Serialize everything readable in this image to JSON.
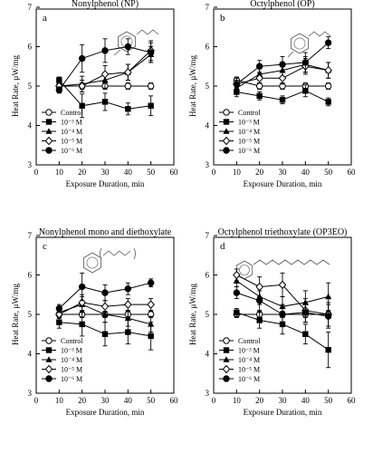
{
  "chart_data": [
    {
      "type": "line",
      "panel_letter": "a",
      "title": "Nonylphenol (NP)",
      "xlabel": "Exposure Duration, min",
      "ylabel": "Heat Rate, µW/mg",
      "xlim": [
        0,
        60
      ],
      "ylim": [
        3,
        7
      ],
      "xticks": [
        0,
        10,
        20,
        30,
        40,
        50,
        60
      ],
      "yticks": [
        3,
        4,
        5,
        6,
        7
      ],
      "legend": "lower-left",
      "series": [
        {
          "name": "Control",
          "marker": "circle-open",
          "x": [
            10,
            20,
            30,
            40,
            50
          ],
          "y": [
            5.0,
            5.0,
            5.0,
            5.0,
            5.0
          ],
          "err": [
            0.08,
            0.08,
            0.08,
            0.08,
            0.08
          ]
        },
        {
          "name": "10⁻³ M",
          "marker": "square",
          "x": [
            10,
            20,
            30,
            40,
            50
          ],
          "y": [
            5.15,
            4.5,
            4.6,
            4.42,
            4.5
          ],
          "err": [
            0.08,
            0.3,
            0.22,
            0.15,
            0.25
          ]
        },
        {
          "name": "10⁻⁴ M",
          "marker": "triangle",
          "x": [
            10,
            20,
            30,
            40,
            50
          ],
          "y": [
            5.0,
            5.05,
            5.15,
            5.35,
            5.8
          ],
          "err": [
            0.08,
            0.2,
            0.2,
            0.2,
            0.2
          ]
        },
        {
          "name": "10⁻⁵ M",
          "marker": "diamond-open",
          "x": [
            10,
            20,
            30,
            40,
            50
          ],
          "y": [
            5.0,
            5.0,
            5.3,
            5.35,
            5.9
          ],
          "err": [
            0.08,
            0.15,
            0.22,
            0.2,
            0.25
          ]
        },
        {
          "name": "10⁻⁶ M",
          "marker": "circle",
          "x": [
            10,
            20,
            30,
            40,
            50
          ],
          "y": [
            4.9,
            5.7,
            5.9,
            6.0,
            5.85
          ],
          "err": [
            0.08,
            0.35,
            0.3,
            0.2,
            0.25
          ]
        }
      ]
    },
    {
      "type": "line",
      "panel_letter": "b",
      "title": "Octylphenol (OP)",
      "xlabel": "Exposure Duration, min",
      "ylabel": "Heat Rate, µW/mg",
      "xlim": [
        0,
        60
      ],
      "ylim": [
        3,
        7
      ],
      "xticks": [
        0,
        10,
        20,
        30,
        40,
        50,
        60
      ],
      "yticks": [
        3,
        4,
        5,
        6,
        7
      ],
      "legend": "lower-left",
      "series": [
        {
          "name": "Control",
          "marker": "circle-open",
          "x": [
            10,
            20,
            30,
            40,
            50
          ],
          "y": [
            5.15,
            5.0,
            5.0,
            5.0,
            5.0
          ],
          "err": [
            0.08,
            0.08,
            0.08,
            0.08,
            0.08
          ]
        },
        {
          "name": "10⁻³ M",
          "marker": "square",
          "x": [
            10,
            20,
            30,
            40,
            50
          ],
          "y": [
            4.85,
            4.75,
            4.65,
            4.88,
            4.6
          ],
          "err": [
            0.12,
            0.1,
            0.1,
            0.15,
            0.1
          ]
        },
        {
          "name": "10⁻⁴ M",
          "marker": "triangle",
          "x": [
            10,
            20,
            30,
            40,
            50
          ],
          "y": [
            4.95,
            5.3,
            5.4,
            5.55,
            5.4
          ],
          "err": [
            0.12,
            0.15,
            0.18,
            0.2,
            0.2
          ]
        },
        {
          "name": "10⁻⁵ M",
          "marker": "diamond-open",
          "x": [
            10,
            20,
            30,
            40,
            50
          ],
          "y": [
            5.05,
            5.2,
            5.2,
            5.5,
            5.4
          ],
          "err": [
            0.1,
            0.12,
            0.15,
            0.2,
            0.2
          ]
        },
        {
          "name": "10⁻⁶ M",
          "marker": "circle",
          "x": [
            10,
            20,
            30,
            40,
            50
          ],
          "y": [
            5.05,
            5.5,
            5.55,
            5.6,
            6.1
          ],
          "err": [
            0.15,
            0.15,
            0.2,
            0.25,
            0.15
          ]
        }
      ]
    },
    {
      "type": "line",
      "panel_letter": "c",
      "title": "Nonylphenol mono and diethoxylate",
      "xlabel": "Exposure Duration, min",
      "ylabel": "Heat Rate, µW/mg",
      "xlim": [
        0,
        60
      ],
      "ylim": [
        3,
        7
      ],
      "xticks": [
        0,
        10,
        20,
        30,
        40,
        50,
        60
      ],
      "yticks": [
        3,
        4,
        5,
        6,
        7
      ],
      "legend": "lower-left",
      "series": [
        {
          "name": "Control",
          "marker": "circle-open",
          "x": [
            10,
            20,
            30,
            40,
            50
          ],
          "y": [
            5.0,
            5.0,
            5.0,
            5.0,
            5.0
          ],
          "err": [
            0.08,
            0.08,
            0.08,
            0.08,
            0.08
          ]
        },
        {
          "name": "10⁻³ M",
          "marker": "square",
          "x": [
            10,
            20,
            30,
            40,
            50
          ],
          "y": [
            4.8,
            4.75,
            4.5,
            4.55,
            4.45
          ],
          "err": [
            0.15,
            0.3,
            0.3,
            0.3,
            0.35
          ]
        },
        {
          "name": "10⁻⁴ M",
          "marker": "triangle",
          "x": [
            10,
            20,
            30,
            40,
            50
          ],
          "y": [
            5.05,
            5.25,
            5.0,
            4.9,
            4.75
          ],
          "err": [
            0.1,
            0.2,
            0.2,
            0.2,
            0.2
          ]
        },
        {
          "name": "10⁻⁵ M",
          "marker": "diamond-open",
          "x": [
            10,
            20,
            30,
            40,
            50
          ],
          "y": [
            5.0,
            5.3,
            5.2,
            5.25,
            5.25
          ],
          "err": [
            0.1,
            0.2,
            0.15,
            0.15,
            0.15
          ]
        },
        {
          "name": "10⁻⁶ M",
          "marker": "circle",
          "x": [
            10,
            20,
            30,
            40,
            50
          ],
          "y": [
            5.15,
            5.7,
            5.55,
            5.65,
            5.8
          ],
          "err": [
            0.1,
            0.35,
            0.2,
            0.15,
            0.1
          ]
        }
      ]
    },
    {
      "type": "line",
      "panel_letter": "d",
      "title": "Octylphenol triethoxylate (OP3EO)",
      "xlabel": "Exposure Duration, min",
      "ylabel": "Heat Rate, µW/mg",
      "xlim": [
        0,
        60
      ],
      "ylim": [
        3,
        7
      ],
      "xticks": [
        0,
        10,
        20,
        30,
        40,
        50,
        60
      ],
      "yticks": [
        3,
        4,
        5,
        6,
        7
      ],
      "legend": "lower-left",
      "series": [
        {
          "name": "Control",
          "marker": "circle-open",
          "x": [
            10,
            20,
            30,
            40,
            50
          ],
          "y": [
            5.0,
            5.0,
            5.0,
            5.0,
            5.0
          ],
          "err": [
            0.08,
            0.08,
            0.08,
            0.08,
            0.08
          ]
        },
        {
          "name": "10⁻³ M",
          "marker": "square",
          "x": [
            10,
            20,
            30,
            40,
            50
          ],
          "y": [
            5.05,
            4.85,
            4.75,
            4.5,
            4.1
          ],
          "err": [
            0.1,
            0.2,
            0.25,
            0.25,
            0.45
          ]
        },
        {
          "name": "10⁻⁴ M",
          "marker": "triangle",
          "x": [
            10,
            20,
            30,
            40,
            50
          ],
          "y": [
            5.85,
            5.45,
            5.2,
            5.3,
            5.45
          ],
          "err": [
            0.15,
            0.2,
            0.25,
            0.3,
            0.35
          ]
        },
        {
          "name": "10⁻⁵ M",
          "marker": "diamond-open",
          "x": [
            10,
            20,
            30,
            40,
            50
          ],
          "y": [
            6.0,
            5.7,
            5.75,
            5.1,
            5.0
          ],
          "err": [
            0.15,
            0.25,
            0.3,
            0.3,
            0.3
          ]
        },
        {
          "name": "10⁻⁶ M",
          "marker": "circle",
          "x": [
            10,
            20,
            30,
            40,
            50
          ],
          "y": [
            5.55,
            5.35,
            5.0,
            5.05,
            4.95
          ],
          "err": [
            0.15,
            0.25,
            0.25,
            0.25,
            0.3
          ]
        }
      ]
    }
  ]
}
